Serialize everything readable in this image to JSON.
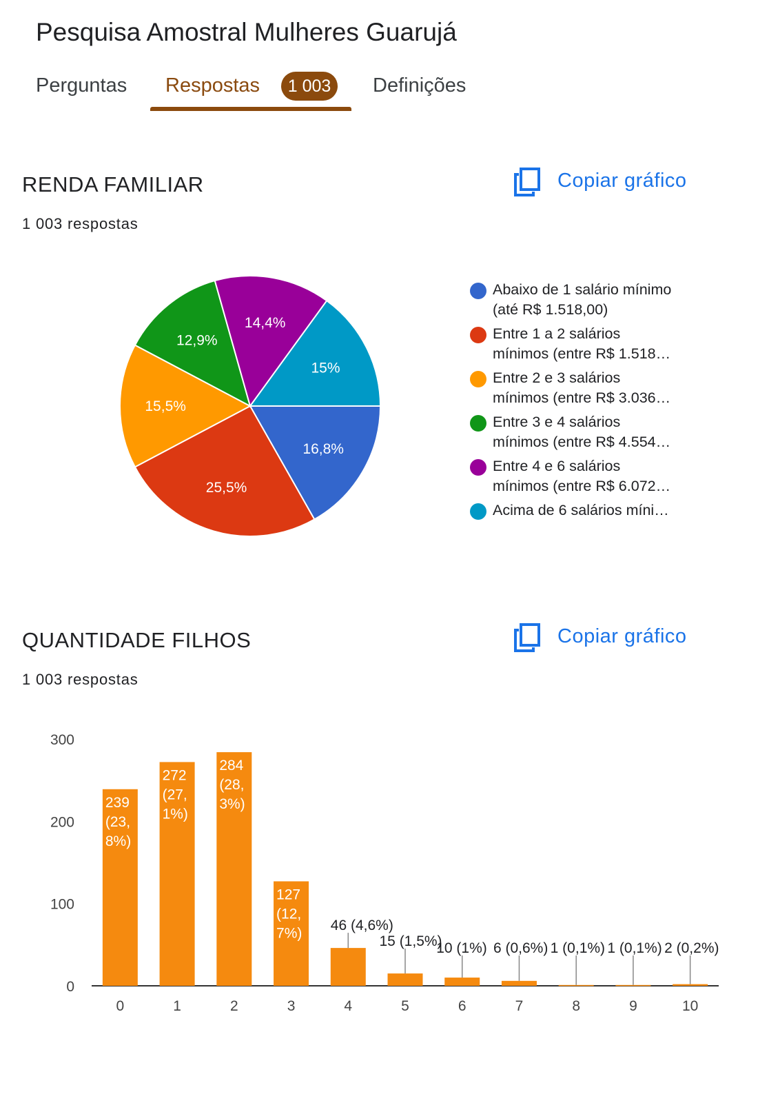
{
  "form": {
    "title": "Pesquisa Amostral Mulheres Guarujá"
  },
  "tabs": {
    "perguntas": "Perguntas",
    "respostas": "Respostas",
    "respostas_badge": "1 003",
    "definicoes": "Definições"
  },
  "colors": {
    "accent": "#8b4a0d",
    "link": "#1a73e8",
    "bar": "#f58a0f"
  },
  "icons": {
    "copy": "copy-icon"
  },
  "renda": {
    "title": "RENDA FAMILIAR",
    "responses": "1 003 respostas",
    "copy_label": "Copiar gráfico",
    "legend": [
      {
        "line1": "Abaixo de 1 salário mínimo",
        "line2": "(até R$ 1.518,00)",
        "color": "#3366cc"
      },
      {
        "line1": "Entre 1 a 2 salários",
        "line2": "mínimos (entre R$ 1.518…",
        "color": "#dc3912"
      },
      {
        "line1": "Entre 2 e 3 salários",
        "line2": "mínimos (entre R$ 3.036…",
        "color": "#ff9900"
      },
      {
        "line1": "Entre 3 e 4 salários",
        "line2": "mínimos (entre R$ 4.554…",
        "color": "#109618"
      },
      {
        "line1": "Entre 4 e 6 salários",
        "line2": "mínimos (entre R$ 6.072…",
        "color": "#990099"
      },
      {
        "line1": "Acima de 6 salários míni…",
        "line2": "",
        "color": "#0099c6"
      }
    ]
  },
  "filhos": {
    "title": "QUANTIDADE FILHOS",
    "responses": "1 003 respostas",
    "copy_label": "Copiar gráfico"
  },
  "chart_data": [
    {
      "type": "pie",
      "title": "RENDA FAMILIAR",
      "slices": [
        {
          "label": "Abaixo de 1 salário mínimo (até R$ 1.518,00)",
          "value": 16.8,
          "display": "16,8%",
          "color": "#3366cc"
        },
        {
          "label": "Entre 1 a 2 salários mínimos (entre R$ 1.518…",
          "value": 25.5,
          "display": "25,5%",
          "color": "#dc3912"
        },
        {
          "label": "Entre 2 e 3 salários mínimos (entre R$ 3.036…",
          "value": 15.5,
          "display": "15,5%",
          "color": "#ff9900"
        },
        {
          "label": "Entre 3 e 4 salários mínimos (entre R$ 4.554…",
          "value": 12.9,
          "display": "12,9%",
          "color": "#109618"
        },
        {
          "label": "Entre 4 e 6 salários mínimos (entre R$ 6.072…",
          "value": 14.4,
          "display": "14,4%",
          "color": "#990099"
        },
        {
          "label": "Acima de 6 salários míni…",
          "value": 15.0,
          "display": "15%",
          "color": "#0099c6"
        }
      ],
      "legend_position": "right"
    },
    {
      "type": "bar",
      "title": "QUANTIDADE FILHOS",
      "categories": [
        "0",
        "1",
        "2",
        "3",
        "4",
        "5",
        "6",
        "7",
        "8",
        "9",
        "10"
      ],
      "values": [
        239,
        272,
        284,
        127,
        46,
        15,
        10,
        6,
        1,
        1,
        2
      ],
      "labels": [
        [
          "239",
          "(23,",
          "8%)"
        ],
        [
          "272",
          "(27,",
          "1%)"
        ],
        [
          "284",
          "(28,",
          "3%)"
        ],
        [
          "127",
          "(12,",
          "7%)"
        ],
        [
          "46 (4,6%)"
        ],
        [
          "15 (1,5%)"
        ],
        [
          "10 (1%)"
        ],
        [
          "6 (0,6%)"
        ],
        [
          "1 (0,1%)"
        ],
        [
          "1 (0,1%)"
        ],
        [
          "2 (0,2%)"
        ]
      ],
      "yticks": [
        "0",
        "100",
        "200",
        "300"
      ],
      "ylim": [
        0,
        300
      ],
      "grid": false
    }
  ]
}
